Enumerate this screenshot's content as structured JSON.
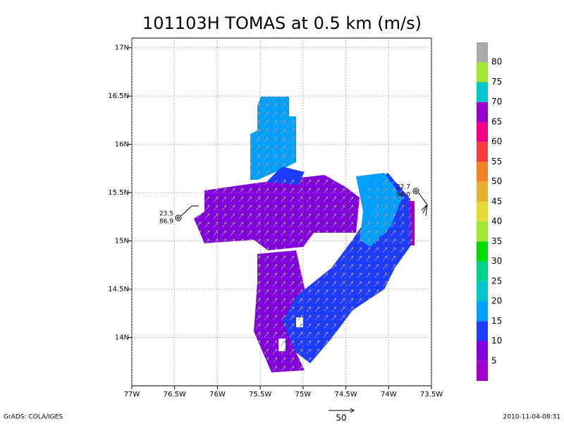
{
  "title": "101103H TOMAS at 0.5 km (m/s)",
  "map": {
    "lonlim": [
      -77,
      -73.5
    ],
    "latlim": [
      13.5,
      17.1
    ],
    "lon_ticks": [
      {
        "value": -77,
        "label": "77W"
      },
      {
        "value": -76.5,
        "label": "76.5W"
      },
      {
        "value": -76,
        "label": "76W"
      },
      {
        "value": -75.5,
        "label": "75.5W"
      },
      {
        "value": -75,
        "label": "75W"
      },
      {
        "value": -74.5,
        "label": "74.5W"
      },
      {
        "value": -74,
        "label": "74W"
      },
      {
        "value": -73.5,
        "label": "73.5W"
      }
    ],
    "lat_ticks": [
      {
        "value": 14,
        "label": "14N"
      },
      {
        "value": 14.5,
        "label": "14.5N"
      },
      {
        "value": 15,
        "label": "15N"
      },
      {
        "value": 15.5,
        "label": "15.5N"
      },
      {
        "value": 16,
        "label": "16N"
      },
      {
        "value": 16.5,
        "label": "16.5N"
      },
      {
        "value": 17,
        "label": "17N"
      }
    ],
    "grid": true
  },
  "colorbar": {
    "levels": [
      5,
      10,
      15,
      20,
      25,
      30,
      35,
      40,
      45,
      50,
      55,
      60,
      65,
      70,
      75,
      80
    ],
    "colors": [
      "#a000c8",
      "#8200dc",
      "#1e3cff",
      "#00a0ff",
      "#00c8c8",
      "#00d28c",
      "#00dc00",
      "#a0e632",
      "#e6dc32",
      "#e6af2d",
      "#f08228",
      "#fa3c3c",
      "#f00082",
      "#9600c8",
      "#00c8c8",
      "#a0e632",
      "#aaaaaa"
    ]
  },
  "annotations": [
    {
      "lines": [
        "23.5",
        "86.9"
      ]
    },
    {
      "lines": [
        "22.7",
        "90.0"
      ]
    }
  ],
  "vector_scale": 50,
  "footer": {
    "left": "GrADS: COLA/IGES",
    "right": "2010-11-04-08:31"
  }
}
